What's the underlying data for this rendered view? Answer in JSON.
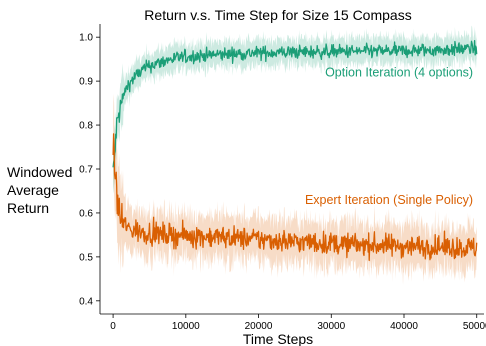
{
  "chart_data": {
    "type": "line",
    "title": "Return v.s. Time Step for Size 15 Compass",
    "xlabel": "Time Steps",
    "ylabel": [
      "Windowed",
      "Average",
      "Return"
    ],
    "xlim": [
      -1800,
      51000
    ],
    "ylim": [
      0.37,
      1.03
    ],
    "xticks": [
      0,
      10000,
      20000,
      30000,
      40000,
      50000
    ],
    "yticks": [
      0.4,
      0.5,
      0.6,
      0.7,
      0.8,
      0.9,
      1.0
    ],
    "grid": false,
    "series": [
      {
        "name": "Option Iteration (4 options)",
        "color": "#1b9e77",
        "x": [
          0,
          250,
          500,
          1000,
          1500,
          2000,
          3000,
          4000,
          5000,
          6000,
          7000,
          8000,
          9000,
          10000,
          12000,
          14000,
          16000,
          18000,
          20000,
          25000,
          30000,
          35000,
          40000,
          45000,
          50000
        ],
        "values": [
          0.69,
          0.74,
          0.8,
          0.84,
          0.87,
          0.89,
          0.91,
          0.925,
          0.935,
          0.94,
          0.945,
          0.95,
          0.953,
          0.955,
          0.958,
          0.96,
          0.962,
          0.963,
          0.964,
          0.966,
          0.967,
          0.968,
          0.969,
          0.971,
          0.975
        ],
        "spread": 0.015,
        "band": 0.03
      },
      {
        "name": "Expert Iteration (Single Policy)",
        "color": "#d95f02",
        "x": [
          0,
          250,
          500,
          1000,
          2000,
          3000,
          4000,
          5000,
          6000,
          8000,
          10000,
          15000,
          20000,
          25000,
          30000,
          35000,
          40000,
          45000,
          50000
        ],
        "values": [
          0.75,
          0.7,
          0.64,
          0.59,
          0.565,
          0.56,
          0.555,
          0.555,
          0.552,
          0.55,
          0.548,
          0.545,
          0.54,
          0.535,
          0.53,
          0.527,
          0.525,
          0.522,
          0.52
        ],
        "spread": 0.025,
        "band": 0.05
      }
    ],
    "annotations": [
      {
        "text": "Option Iteration (4 options)",
        "x": 49500,
        "y": 0.91,
        "color": "#1b9e77"
      },
      {
        "text": "Expert Iteration (Single Policy)",
        "x": 49500,
        "y": 0.62,
        "color": "#d95f02"
      }
    ]
  }
}
